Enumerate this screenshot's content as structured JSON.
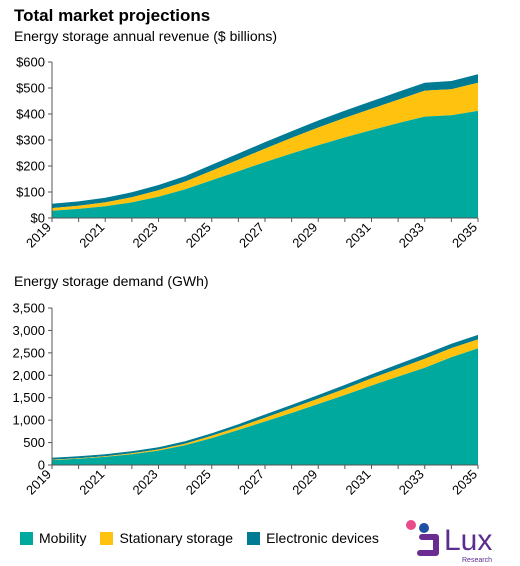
{
  "header": {
    "title": "Total market projections",
    "subtitle_top": "Energy storage annual revenue ($ billions)",
    "subtitle_bottom": "Energy storage demand (GWh)"
  },
  "colors": {
    "mobility": "#00A99D",
    "stationary": "#FFC20E",
    "electronic": "#007B94"
  },
  "legend": {
    "mobility": "Mobility",
    "stationary": "Stationary storage",
    "electronic": "Electronic devices"
  },
  "logo": {
    "text": "Lux",
    "sub": "Research"
  },
  "chart_data": [
    {
      "type": "area",
      "stacked": true,
      "title": "Energy storage annual revenue ($ billions)",
      "x": [
        2019,
        2020,
        2021,
        2022,
        2023,
        2024,
        2025,
        2026,
        2027,
        2028,
        2029,
        2030,
        2031,
        2032,
        2033,
        2034,
        2035
      ],
      "xticks": [
        "2019",
        "2021",
        "2023",
        "2025",
        "2027",
        "2029",
        "2031",
        "2033",
        "2035"
      ],
      "yticks": [
        "$0",
        "$100",
        "$200",
        "$300",
        "$400",
        "$500",
        "$600"
      ],
      "ylim": [
        0,
        600
      ],
      "series": [
        {
          "name": "Mobility",
          "values": [
            28,
            35,
            45,
            60,
            82,
            110,
            145,
            180,
            215,
            248,
            280,
            310,
            338,
            365,
            390,
            395,
            412
          ]
        },
        {
          "name": "Stationary storage",
          "values": [
            10,
            12,
            15,
            20,
            25,
            30,
            37,
            44,
            52,
            60,
            68,
            75,
            82,
            90,
            100,
            100,
            108
          ]
        },
        {
          "name": "Electronic devices",
          "values": [
            17,
            17,
            18,
            19,
            20,
            21,
            23,
            24,
            25,
            26,
            27,
            28,
            29,
            30,
            30,
            32,
            33
          ]
        }
      ]
    },
    {
      "type": "area",
      "stacked": true,
      "title": "Energy storage demand (GWh)",
      "x": [
        2019,
        2020,
        2021,
        2022,
        2023,
        2024,
        2025,
        2026,
        2027,
        2028,
        2029,
        2030,
        2031,
        2032,
        2033,
        2034,
        2035
      ],
      "xticks": [
        "2019",
        "2021",
        "2023",
        "2025",
        "2027",
        "2029",
        "2031",
        "2033",
        "2035"
      ],
      "yticks": [
        "0",
        "500",
        "1,000",
        "1,500",
        "2,000",
        "2,500",
        "3,000",
        "3,500"
      ],
      "ylim": [
        0,
        3500
      ],
      "series": [
        {
          "name": "Mobility",
          "values": [
            110,
            140,
            180,
            240,
            320,
            440,
            600,
            780,
            970,
            1160,
            1360,
            1560,
            1770,
            1970,
            2170,
            2400,
            2600
          ]
        },
        {
          "name": "Stationary storage",
          "values": [
            10,
            12,
            15,
            20,
            25,
            35,
            50,
            65,
            85,
            105,
            120,
            140,
            160,
            180,
            200,
            205,
            200
          ]
        },
        {
          "name": "Electronic devices",
          "values": [
            40,
            42,
            45,
            48,
            52,
            55,
            60,
            65,
            70,
            75,
            80,
            85,
            90,
            95,
            100,
            100,
            100
          ]
        }
      ]
    }
  ]
}
